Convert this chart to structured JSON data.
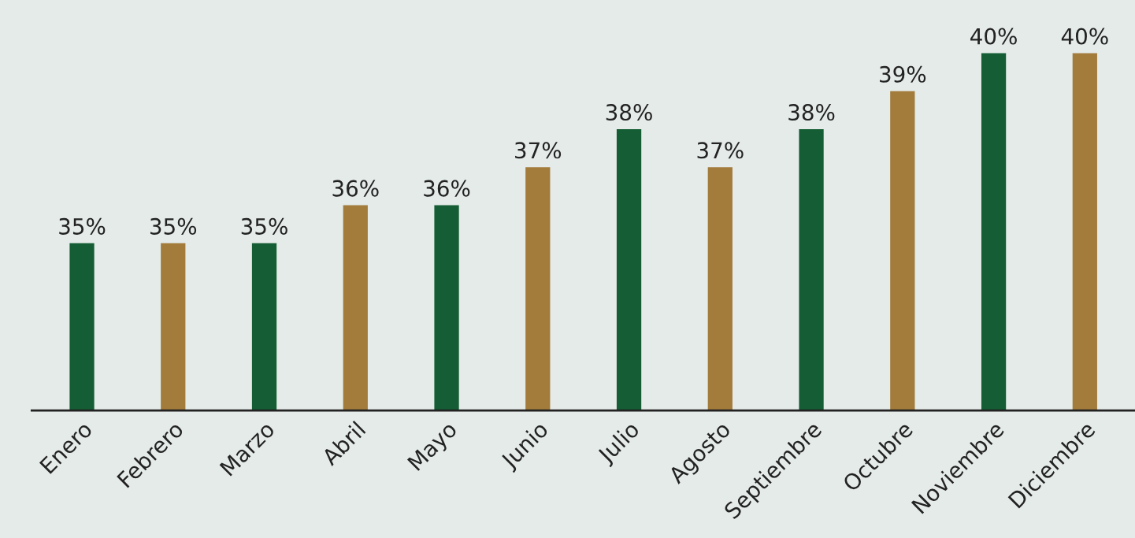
{
  "chart_data": {
    "type": "bar",
    "categories": [
      "Enero",
      "Febrero",
      "Marzo",
      "Abril",
      "Mayo",
      "Junio",
      "Julio",
      "Agosto",
      "Septiembre",
      "Octubre",
      "Noviembre",
      "Diciembre"
    ],
    "values": [
      35,
      35,
      35,
      36,
      36,
      37,
      38,
      37,
      38,
      39,
      40,
      40
    ],
    "colors": [
      "#155e35",
      "#a37c3c",
      "#155e35",
      "#a37c3c",
      "#155e35",
      "#a37c3c",
      "#155e35",
      "#a37c3c",
      "#155e35",
      "#a37c3c",
      "#155e35",
      "#a37c3c"
    ],
    "value_labels": [
      "35%",
      "35%",
      "35%",
      "36%",
      "36%",
      "37%",
      "38%",
      "37%",
      "38%",
      "39%",
      "40%",
      "40%"
    ],
    "ylim": [
      30.6,
      41.4
    ],
    "grid": false,
    "legend": false
  }
}
